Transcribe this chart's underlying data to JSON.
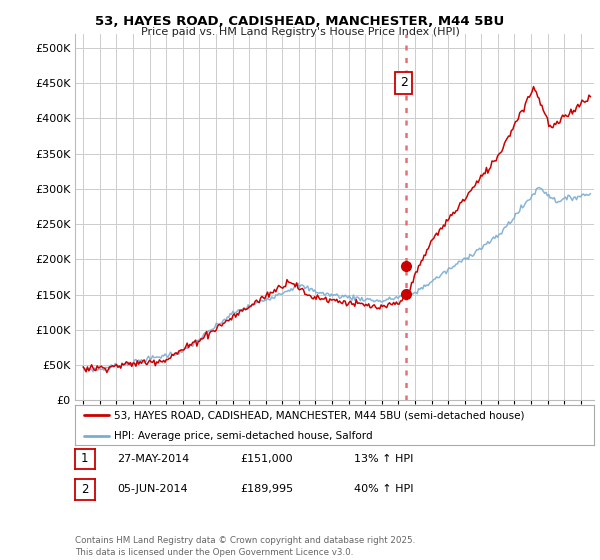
{
  "title": "53, HAYES ROAD, CADISHEAD, MANCHESTER, M44 5BU",
  "subtitle": "Price paid vs. HM Land Registry's House Price Index (HPI)",
  "legend_line1": "53, HAYES ROAD, CADISHEAD, MANCHESTER, M44 5BU (semi-detached house)",
  "legend_line2": "HPI: Average price, semi-detached house, Salford",
  "red_color": "#cc0000",
  "blue_color": "#7aadd4",
  "dotted_line_color": "#e87070",
  "marker1_price": 151000,
  "marker2_price": 189995,
  "vline_x": 2014.45,
  "table_row1": [
    "1",
    "27-MAY-2014",
    "£151,000",
    "13% ↑ HPI"
  ],
  "table_row2": [
    "2",
    "05-JUN-2014",
    "£189,995",
    "40% ↑ HPI"
  ],
  "footer": "Contains HM Land Registry data © Crown copyright and database right 2025.\nThis data is licensed under the Open Government Licence v3.0.",
  "ylim": [
    0,
    520000
  ],
  "yticks": [
    0,
    50000,
    100000,
    150000,
    200000,
    250000,
    300000,
    350000,
    400000,
    450000,
    500000
  ],
  "xlim_start": 1994.5,
  "xlim_end": 2025.8,
  "bg_color": "#ffffff",
  "grid_color": "#cccccc"
}
